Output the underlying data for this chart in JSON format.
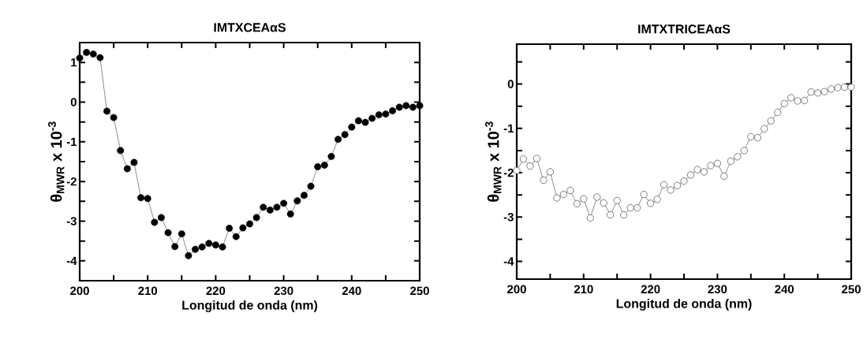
{
  "chart_data": [
    {
      "type": "line",
      "title": "IMTXCEAαS",
      "xlabel": "Longitud de onda (nm)",
      "ylabel": "θ$_{MWR}$ x 10$^{-3}$",
      "marker": "circle",
      "x": [
        200,
        201,
        202,
        203,
        204,
        205,
        206,
        207,
        208,
        209,
        210,
        211,
        212,
        213,
        214,
        215,
        216,
        217,
        218,
        219,
        220,
        221,
        222,
        223,
        224,
        225,
        226,
        227,
        228,
        229,
        230,
        231,
        232,
        233,
        234,
        235,
        236,
        237,
        238,
        239,
        240,
        241,
        242,
        243,
        244,
        245,
        246,
        247,
        248,
        249,
        250
      ],
      "series": [
        {
          "color": "#000000",
          "values": [
            1.11,
            1.25,
            1.21,
            1.12,
            -0.23,
            -0.39,
            -1.22,
            -1.68,
            -1.52,
            -2.41,
            -2.43,
            -3.03,
            -2.91,
            -3.29,
            -3.64,
            -3.32,
            -3.87,
            -3.71,
            -3.65,
            -3.56,
            -3.6,
            -3.65,
            -3.18,
            -3.39,
            -3.17,
            -3.07,
            -2.91,
            -2.65,
            -2.72,
            -2.65,
            -2.55,
            -2.82,
            -2.49,
            -2.35,
            -2.12,
            -1.63,
            -1.59,
            -1.37,
            -0.94,
            -0.82,
            -0.63,
            -0.47,
            -0.51,
            -0.41,
            -0.32,
            -0.3,
            -0.22,
            -0.13,
            -0.09,
            -0.13,
            -0.09
          ]
        }
      ],
      "xlim": [
        200,
        250
      ],
      "ylim": [
        -4.5,
        1.5
      ],
      "xticks": [
        200,
        {
          "value": 205,
          "label": null
        },
        210,
        {
          "value": 215,
          "label": null
        },
        220,
        {
          "value": 225,
          "label": null
        },
        230,
        {
          "value": 235,
          "label": null
        },
        240,
        {
          "value": 245,
          "label": null
        },
        250
      ],
      "yticks": [
        -4,
        {
          "value": -3.5,
          "label": null
        },
        -3,
        {
          "value": -2.5,
          "label": null
        },
        -2,
        {
          "value": -1.5,
          "label": null
        },
        -1,
        {
          "value": -0.5,
          "label": null
        },
        0,
        {
          "value": 0.5,
          "label": null
        },
        1
      ]
    },
    {
      "type": "line",
      "title": "IMTXTRICEAαS",
      "xlabel": "Longitud de onda (nm)",
      "ylabel": "θ$_{MWR}$ x 10$^{-3}$",
      "marker": "circle",
      "x": [
        200,
        201,
        202,
        203,
        204,
        205,
        206,
        207,
        208,
        209,
        210,
        211,
        212,
        213,
        214,
        215,
        216,
        217,
        218,
        219,
        220,
        221,
        222,
        223,
        224,
        225,
        226,
        227,
        228,
        229,
        230,
        231,
        232,
        233,
        234,
        235,
        236,
        237,
        238,
        239,
        240,
        241,
        242,
        243,
        244,
        245,
        246,
        247,
        248,
        249,
        250
      ],
      "series": [
        {
          "color": "#ffffff",
          "values": [
            -1.95,
            -1.69,
            -1.85,
            -1.68,
            -2.17,
            -1.98,
            -2.57,
            -2.49,
            -2.4,
            -2.7,
            -2.59,
            -3.02,
            -2.55,
            -2.68,
            -2.95,
            -2.63,
            -2.95,
            -2.79,
            -2.79,
            -2.49,
            -2.69,
            -2.6,
            -2.27,
            -2.39,
            -2.29,
            -2.19,
            -2.05,
            -1.93,
            -1.98,
            -1.84,
            -1.79,
            -2.08,
            -1.74,
            -1.64,
            -1.5,
            -1.19,
            -1.21,
            -1.01,
            -0.83,
            -0.64,
            -0.44,
            -0.31,
            -0.38,
            -0.37,
            -0.18,
            -0.2,
            -0.17,
            -0.11,
            -0.08,
            -0.07,
            -0.07
          ]
        }
      ],
      "xlim": [
        200,
        250
      ],
      "ylim": [
        -4.4,
        0.9
      ],
      "xticks": [
        200,
        {
          "value": 205,
          "label": null
        },
        210,
        {
          "value": 215,
          "label": null
        },
        220,
        {
          "value": 225,
          "label": null
        },
        230,
        {
          "value": 235,
          "label": null
        },
        240,
        {
          "value": 245,
          "label": null
        },
        250
      ],
      "yticks": [
        -4,
        {
          "value": -3.5,
          "label": null
        },
        -3,
        {
          "value": -2.5,
          "label": null
        },
        -2,
        {
          "value": -1.5,
          "label": null
        },
        -1,
        {
          "value": -0.5,
          "label": null
        },
        0,
        {
          "value": 0.5,
          "label": null
        }
      ]
    }
  ]
}
